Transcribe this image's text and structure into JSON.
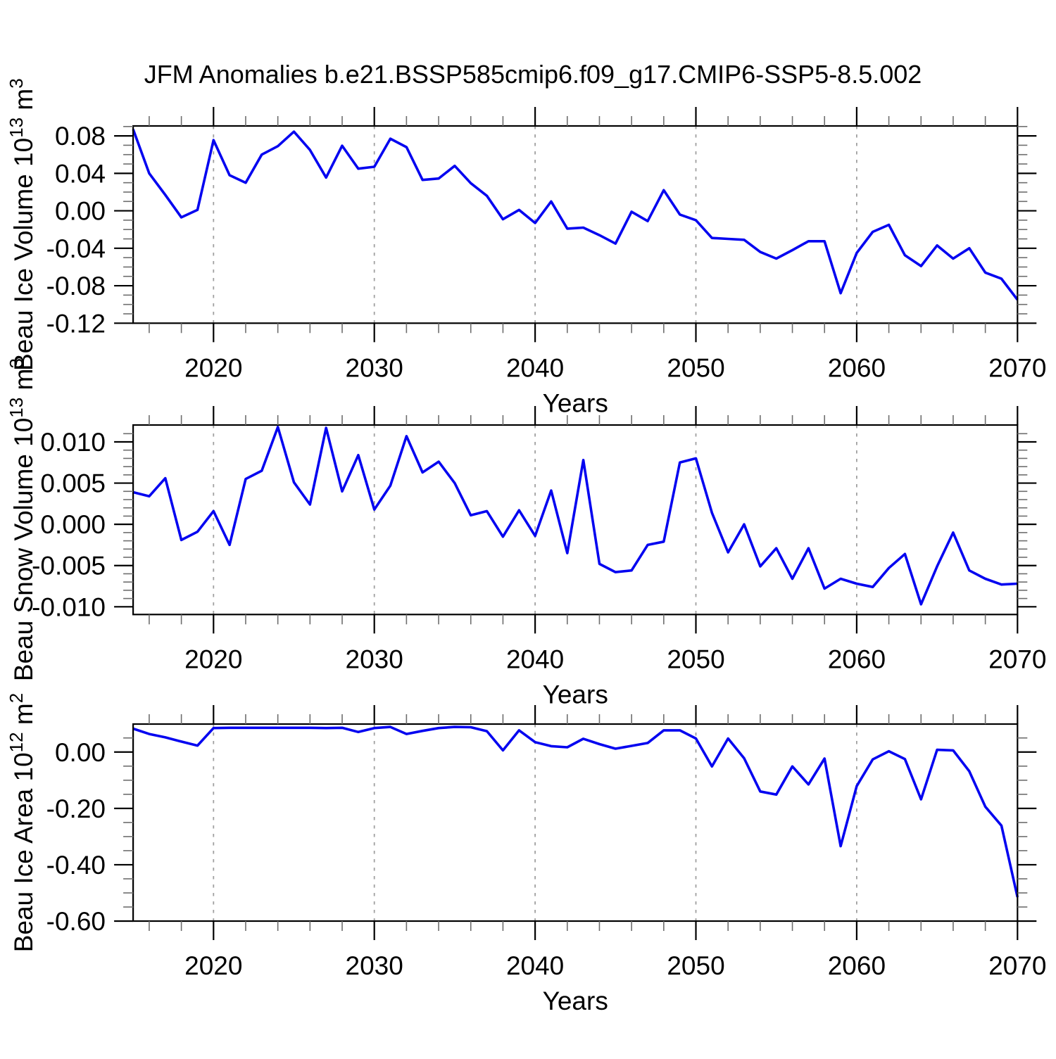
{
  "figure": {
    "title": "JFM Anomalies b.e21.BSSP585cmip6.f09_g17.CMIP6-SSP5-8.5.002",
    "background": "#ffffff",
    "line_color": "#0404f0",
    "grid_color": "#a0a0a0",
    "frame_color": "#000000",
    "major_tick_color": "#000000",
    "minor_tick_color": "#6e6e6e",
    "text_color": "#000000"
  },
  "chart_data": [
    {
      "type": "line",
      "name": "beau-ice-volume",
      "ylabel": {
        "prefix": "Beau Ice Volume 10",
        "exp": "13",
        "mid": " m",
        "exp2": "3"
      },
      "xlabel": "Years",
      "legend": "none",
      "grid": "dashed-vertical-majors",
      "xlim": [
        2015,
        2070
      ],
      "ylim": [
        -0.12,
        0.0906
      ],
      "xticks": [
        {
          "v": 2020,
          "label": "2020"
        },
        {
          "v": 2030,
          "label": "2030"
        },
        {
          "v": 2040,
          "label": "2040"
        },
        {
          "v": 2050,
          "label": "2050"
        },
        {
          "v": 2060,
          "label": "2060"
        },
        {
          "v": 2070,
          "label": "2070"
        }
      ],
      "x_minor_step": 2,
      "grid_at": [
        2020,
        2030,
        2040,
        2050,
        2060
      ],
      "yticks": [
        {
          "v": 0.08,
          "label": "0.08"
        },
        {
          "v": 0.04,
          "label": "0.04"
        },
        {
          "v": 0.0,
          "label": "0.00"
        },
        {
          "v": -0.04,
          "label": "-0.04"
        },
        {
          "v": -0.08,
          "label": "-0.08"
        },
        {
          "v": -0.12,
          "label": "-0.12"
        }
      ],
      "yminor": {
        "from": 0.09,
        "to": -0.11,
        "step": 0.01
      },
      "years": [
        2015,
        2016,
        2017,
        2018,
        2019,
        2020,
        2021,
        2022,
        2023,
        2024,
        2025,
        2026,
        2027,
        2028,
        2029,
        2030,
        2031,
        2032,
        2033,
        2034,
        2035,
        2036,
        2037,
        2038,
        2039,
        2040,
        2041,
        2042,
        2043,
        2044,
        2045,
        2046,
        2047,
        2048,
        2049,
        2050,
        2051,
        2052,
        2053,
        2054,
        2055,
        2056,
        2057,
        2058,
        2059,
        2060,
        2061,
        2062,
        2063,
        2064,
        2065,
        2066,
        2067,
        2068,
        2069,
        2070
      ],
      "values": [
        0.087,
        0.04,
        0.017,
        -0.007,
        0.001,
        0.0755,
        0.038,
        0.03,
        0.06,
        0.069,
        0.0845,
        0.065,
        0.0355,
        0.0695,
        0.045,
        0.047,
        0.077,
        0.068,
        0.033,
        0.0345,
        0.048,
        0.0295,
        0.016,
        -0.009,
        0.001,
        -0.013,
        0.01,
        -0.019,
        -0.018,
        -0.026,
        -0.035,
        -0.001,
        -0.011,
        0.022,
        -0.004,
        -0.01,
        -0.029,
        -0.03,
        -0.031,
        -0.044,
        -0.051,
        -0.042,
        -0.0325,
        -0.0325,
        -0.088,
        -0.045,
        -0.0225,
        -0.015,
        -0.0475,
        -0.059,
        -0.037,
        -0.051,
        -0.04,
        -0.066,
        -0.0725,
        -0.095
      ]
    },
    {
      "type": "line",
      "name": "beau-snow-volume",
      "ylabel": {
        "prefix": "Beau Snow Volume 10",
        "exp": "13",
        "mid": " m",
        "exp2": "3"
      },
      "xlabel": "Years",
      "legend": "none",
      "grid": "dashed-vertical-majors",
      "xlim": [
        2015,
        2070
      ],
      "ylim": [
        -0.01094,
        0.01205
      ],
      "xticks": [
        {
          "v": 2020,
          "label": "2020"
        },
        {
          "v": 2030,
          "label": "2030"
        },
        {
          "v": 2040,
          "label": "2040"
        },
        {
          "v": 2050,
          "label": "2050"
        },
        {
          "v": 2060,
          "label": "2060"
        },
        {
          "v": 2070,
          "label": "2070"
        }
      ],
      "x_minor_step": 2,
      "grid_at": [
        2020,
        2030,
        2040,
        2050,
        2060
      ],
      "yticks": [
        {
          "v": 0.01,
          "label": "0.010"
        },
        {
          "v": 0.005,
          "label": "0.005"
        },
        {
          "v": 0.0,
          "label": "0.000"
        },
        {
          "v": -0.005,
          "label": "-0.005"
        },
        {
          "v": -0.01,
          "label": "-0.010"
        }
      ],
      "yminor": {
        "from": 0.011,
        "to": -0.009,
        "step": 0.001
      },
      "years": [
        2015,
        2016,
        2017,
        2018,
        2019,
        2020,
        2021,
        2022,
        2023,
        2024,
        2025,
        2026,
        2027,
        2028,
        2029,
        2030,
        2031,
        2032,
        2033,
        2034,
        2035,
        2036,
        2037,
        2038,
        2039,
        2040,
        2041,
        2042,
        2043,
        2044,
        2045,
        2046,
        2047,
        2048,
        2049,
        2050,
        2051,
        2052,
        2053,
        2054,
        2055,
        2056,
        2057,
        2058,
        2059,
        2060,
        2061,
        2062,
        2063,
        2064,
        2065,
        2066,
        2067,
        2068,
        2069,
        2070
      ],
      "values": [
        0.0039,
        0.0034,
        0.0056,
        -0.0019,
        -0.0009,
        0.0016,
        -0.0025,
        0.0055,
        0.0065,
        0.0118,
        0.0051,
        0.0024,
        0.0117,
        0.004,
        0.0084,
        0.0018,
        0.0047,
        0.0107,
        0.0063,
        0.0076,
        0.005,
        0.0011,
        0.0016,
        -0.0015,
        0.0017,
        -0.0014,
        0.0041,
        -0.0035,
        0.0078,
        -0.0048,
        -0.0058,
        -0.0056,
        -0.0025,
        -0.0021,
        0.0075,
        0.008,
        0.0014,
        -0.0034,
        0.0,
        -0.0051,
        -0.0029,
        -0.0066,
        -0.0029,
        -0.0078,
        -0.0066,
        -0.0072,
        -0.0076,
        -0.0053,
        -0.0036,
        -0.0097,
        -0.0051,
        -0.001,
        -0.0056,
        -0.0066,
        -0.0073,
        -0.0072
      ]
    },
    {
      "type": "line",
      "name": "beau-ice-area",
      "ylabel": {
        "prefix": "Beau Ice Area 10",
        "exp": "12",
        "mid": " m",
        "exp2": "2"
      },
      "xlabel": "Years",
      "legend": "none",
      "grid": "dashed-vertical-majors",
      "xlim": [
        2015,
        2070
      ],
      "ylim": [
        -0.6,
        0.0993
      ],
      "xticks": [
        {
          "v": 2020,
          "label": "2020"
        },
        {
          "v": 2030,
          "label": "2030"
        },
        {
          "v": 2040,
          "label": "2040"
        },
        {
          "v": 2050,
          "label": "2050"
        },
        {
          "v": 2060,
          "label": "2060"
        },
        {
          "v": 2070,
          "label": "2070"
        }
      ],
      "x_minor_step": 2,
      "grid_at": [
        2020,
        2030,
        2040,
        2050,
        2060
      ],
      "yticks": [
        {
          "v": 0.0,
          "label": "0.00"
        },
        {
          "v": -0.2,
          "label": "-0.20"
        },
        {
          "v": -0.4,
          "label": "-0.40"
        },
        {
          "v": -0.6,
          "label": "-0.60"
        }
      ],
      "yminor": {
        "from": 0.05,
        "to": -0.55,
        "step": 0.05
      },
      "years": [
        2015,
        2016,
        2017,
        2018,
        2019,
        2020,
        2021,
        2022,
        2023,
        2024,
        2025,
        2026,
        2027,
        2028,
        2029,
        2030,
        2031,
        2032,
        2033,
        2034,
        2035,
        2036,
        2037,
        2038,
        2039,
        2040,
        2041,
        2042,
        2043,
        2044,
        2045,
        2046,
        2047,
        2048,
        2049,
        2050,
        2051,
        2052,
        2053,
        2054,
        2055,
        2056,
        2057,
        2058,
        2059,
        2060,
        2061,
        2062,
        2063,
        2064,
        2065,
        2066,
        2067,
        2068,
        2069,
        2070
      ],
      "values": [
        0.083,
        0.064,
        0.052,
        0.037,
        0.023,
        0.085,
        0.086,
        0.086,
        0.086,
        0.086,
        0.086,
        0.086,
        0.085,
        0.086,
        0.071,
        0.085,
        0.089,
        0.064,
        0.075,
        0.085,
        0.089,
        0.088,
        0.074,
        0.006,
        0.077,
        0.035,
        0.021,
        0.017,
        0.047,
        0.028,
        0.012,
        0.022,
        0.032,
        0.077,
        0.077,
        0.048,
        -0.051,
        0.048,
        -0.022,
        -0.14,
        -0.151,
        -0.051,
        -0.115,
        -0.023,
        -0.334,
        -0.121,
        -0.026,
        0.003,
        -0.025,
        -0.168,
        0.008,
        0.006,
        -0.068,
        -0.194,
        -0.261,
        -0.515
      ]
    }
  ]
}
